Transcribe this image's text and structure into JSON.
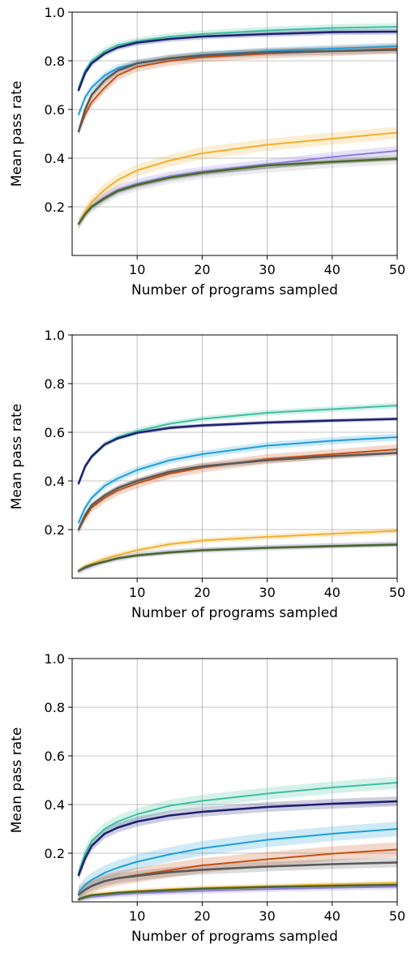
{
  "chart_data": [
    {
      "type": "line",
      "xlabel": "Number of programs sampled",
      "ylabel": "Mean pass rate",
      "xlim": [
        0,
        50
      ],
      "ylim": [
        0,
        1.0
      ],
      "xticks": [
        10,
        20,
        30,
        40,
        50
      ],
      "yticks": [
        0.2,
        0.4,
        0.6,
        0.8,
        1.0
      ],
      "grid": true,
      "x": [
        1,
        2,
        3,
        5,
        7,
        10,
        15,
        20,
        30,
        40,
        50
      ],
      "series": [
        {
          "color": "#3fbfa0",
          "band": 0.015,
          "values": [
            0.69,
            0.76,
            0.8,
            0.84,
            0.865,
            0.88,
            0.9,
            0.91,
            0.925,
            0.935,
            0.94
          ]
        },
        {
          "color": "#1f2272",
          "band": 0.012,
          "values": [
            0.68,
            0.75,
            0.79,
            0.83,
            0.855,
            0.875,
            0.89,
            0.9,
            0.91,
            0.918,
            0.92
          ]
        },
        {
          "color": "#1e9ed8",
          "band": 0.015,
          "values": [
            0.58,
            0.65,
            0.69,
            0.74,
            0.77,
            0.79,
            0.81,
            0.825,
            0.84,
            0.85,
            0.86
          ]
        },
        {
          "color": "#c84e10",
          "band": 0.02,
          "values": [
            0.51,
            0.58,
            0.63,
            0.69,
            0.74,
            0.775,
            0.8,
            0.815,
            0.83,
            0.84,
            0.85
          ]
        },
        {
          "color": "#5a5a5a",
          "band": 0.015,
          "values": [
            0.51,
            0.6,
            0.66,
            0.72,
            0.76,
            0.79,
            0.81,
            0.822,
            0.835,
            0.84,
            0.845
          ]
        },
        {
          "color": "#f0b030",
          "band": 0.025,
          "values": [
            0.13,
            0.18,
            0.22,
            0.27,
            0.31,
            0.35,
            0.39,
            0.42,
            0.455,
            0.48,
            0.505
          ]
        },
        {
          "color": "#8f7be0",
          "band": 0.02,
          "values": [
            0.13,
            0.17,
            0.2,
            0.24,
            0.27,
            0.295,
            0.325,
            0.345,
            0.375,
            0.405,
            0.43
          ]
        },
        {
          "color": "#aaaaaa",
          "band": 0.02,
          "values": [
            0.13,
            0.17,
            0.2,
            0.23,
            0.26,
            0.285,
            0.315,
            0.335,
            0.36,
            0.38,
            0.395
          ]
        },
        {
          "color": "#4a6a2a",
          "band": 0.01,
          "values": [
            0.13,
            0.17,
            0.2,
            0.235,
            0.265,
            0.29,
            0.32,
            0.34,
            0.37,
            0.385,
            0.398
          ]
        }
      ]
    },
    {
      "type": "line",
      "xlabel": "Number of programs sampled",
      "ylabel": "Mean pass rate",
      "xlim": [
        0,
        50
      ],
      "ylim": [
        0,
        1.0
      ],
      "xticks": [
        10,
        20,
        30,
        40,
        50
      ],
      "yticks": [
        0.2,
        0.4,
        0.6,
        0.8,
        1.0
      ],
      "grid": true,
      "x": [
        1,
        2,
        3,
        5,
        7,
        10,
        15,
        20,
        30,
        40,
        50
      ],
      "series": [
        {
          "color": "#3fbfa0",
          "band": 0.012,
          "values": [
            0.39,
            0.46,
            0.5,
            0.55,
            0.58,
            0.605,
            0.635,
            0.655,
            0.68,
            0.695,
            0.71
          ]
        },
        {
          "color": "#1f2272",
          "band": 0.008,
          "values": [
            0.39,
            0.46,
            0.5,
            0.55,
            0.575,
            0.598,
            0.618,
            0.628,
            0.64,
            0.648,
            0.655
          ]
        },
        {
          "color": "#1e9ed8",
          "band": 0.015,
          "values": [
            0.23,
            0.29,
            0.33,
            0.38,
            0.41,
            0.445,
            0.485,
            0.51,
            0.545,
            0.565,
            0.58
          ]
        },
        {
          "color": "#c84e10",
          "band": 0.02,
          "values": [
            0.2,
            0.25,
            0.29,
            0.33,
            0.36,
            0.39,
            0.43,
            0.455,
            0.49,
            0.51,
            0.53
          ]
        },
        {
          "color": "#5a5a5a",
          "band": 0.012,
          "values": [
            0.2,
            0.26,
            0.3,
            0.34,
            0.37,
            0.4,
            0.438,
            0.46,
            0.485,
            0.502,
            0.515
          ]
        },
        {
          "color": "#f0b030",
          "band": 0.012,
          "values": [
            0.03,
            0.05,
            0.06,
            0.08,
            0.095,
            0.115,
            0.14,
            0.155,
            0.17,
            0.183,
            0.195
          ]
        },
        {
          "color": "#8f7be0",
          "band": 0.012,
          "values": [
            0.03,
            0.04,
            0.05,
            0.07,
            0.08,
            0.095,
            0.108,
            0.115,
            0.125,
            0.133,
            0.14
          ]
        },
        {
          "color": "#aaaaaa",
          "band": 0.01,
          "values": [
            0.03,
            0.045,
            0.055,
            0.07,
            0.083,
            0.095,
            0.108,
            0.117,
            0.127,
            0.134,
            0.14
          ]
        },
        {
          "color": "#4a6a2a",
          "band": 0.005,
          "values": [
            0.03,
            0.045,
            0.055,
            0.068,
            0.082,
            0.094,
            0.106,
            0.115,
            0.125,
            0.132,
            0.138
          ]
        }
      ]
    },
    {
      "type": "line",
      "xlabel": "Number of programs sampled",
      "ylabel": "Mean pass rate",
      "xlim": [
        0,
        50
      ],
      "ylim": [
        0,
        1.0
      ],
      "xticks": [
        10,
        20,
        30,
        40,
        50
      ],
      "yticks": [
        0.2,
        0.4,
        0.6,
        0.8,
        1.0
      ],
      "grid": true,
      "x": [
        1,
        2,
        3,
        5,
        7,
        10,
        15,
        20,
        30,
        40,
        50
      ],
      "series": [
        {
          "color": "#3fbfa0",
          "band": 0.025,
          "values": [
            0.12,
            0.2,
            0.25,
            0.3,
            0.33,
            0.36,
            0.395,
            0.415,
            0.445,
            0.47,
            0.49
          ]
        },
        {
          "color": "#1f2272",
          "band": 0.02,
          "values": [
            0.11,
            0.18,
            0.23,
            0.28,
            0.305,
            0.33,
            0.355,
            0.37,
            0.39,
            0.403,
            0.413
          ]
        },
        {
          "color": "#1e9ed8",
          "band": 0.03,
          "values": [
            0.04,
            0.07,
            0.09,
            0.12,
            0.14,
            0.165,
            0.195,
            0.22,
            0.255,
            0.28,
            0.3
          ]
        },
        {
          "color": "#c84e10",
          "band": 0.03,
          "values": [
            0.03,
            0.05,
            0.065,
            0.085,
            0.098,
            0.11,
            0.13,
            0.15,
            0.175,
            0.198,
            0.215
          ]
        },
        {
          "color": "#5a5a5a",
          "band": 0.02,
          "values": [
            0.03,
            0.05,
            0.065,
            0.085,
            0.097,
            0.107,
            0.122,
            0.132,
            0.145,
            0.155,
            0.162
          ]
        },
        {
          "color": "#f0b030",
          "band": 0.01,
          "values": [
            0.01,
            0.02,
            0.03,
            0.035,
            0.04,
            0.045,
            0.052,
            0.058,
            0.065,
            0.072,
            0.078
          ]
        },
        {
          "color": "#8f7be0",
          "band": 0.012,
          "values": [
            0.01,
            0.015,
            0.02,
            0.025,
            0.03,
            0.035,
            0.04,
            0.045,
            0.052,
            0.058,
            0.062
          ]
        },
        {
          "color": "#aaaaaa",
          "band": 0.01,
          "values": [
            0.01,
            0.02,
            0.025,
            0.03,
            0.035,
            0.04,
            0.047,
            0.053,
            0.06,
            0.065,
            0.07
          ]
        },
        {
          "color": "#4a6a2a",
          "band": 0.005,
          "values": [
            0.01,
            0.02,
            0.027,
            0.032,
            0.037,
            0.042,
            0.048,
            0.054,
            0.061,
            0.066,
            0.07
          ]
        }
      ]
    }
  ]
}
